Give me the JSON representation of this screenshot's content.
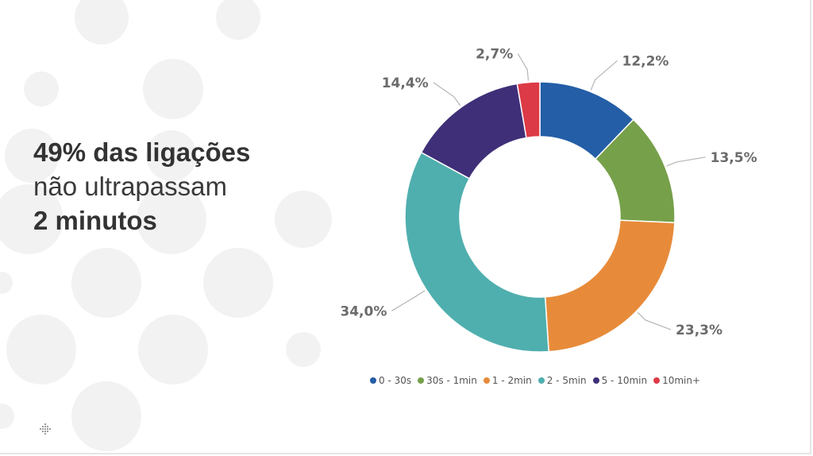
{
  "headline": {
    "line1": "49% das ligações",
    "line2": "não ultrapassam",
    "line3": "2 minutos"
  },
  "chart_data": {
    "type": "pie",
    "donut": true,
    "categories": [
      "0 - 30s",
      "30s - 1min",
      "1 - 2min",
      "2 - 5min",
      "5 - 10min",
      "10min+"
    ],
    "values": [
      12.2,
      13.5,
      23.3,
      34.0,
      14.4,
      2.7
    ],
    "labels": [
      "12,2%",
      "13,5%",
      "23,3%",
      "34,0%",
      "14,4%",
      "2,7%"
    ],
    "colors": [
      "#235ea6",
      "#76a04a",
      "#e78b3a",
      "#4fafae",
      "#3e2f78",
      "#dd3a47"
    ],
    "legend_position": "bottom",
    "title": ""
  }
}
